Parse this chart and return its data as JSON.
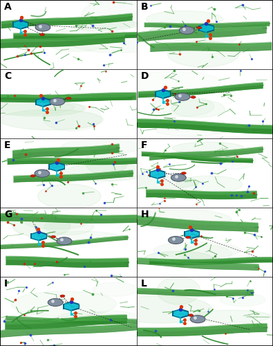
{
  "panels": [
    "A",
    "B",
    "C",
    "D",
    "E",
    "F",
    "G",
    "H",
    "I",
    "L"
  ],
  "grid_cols": 2,
  "grid_rows": 5,
  "panel_label_fontsize": 10,
  "panel_label_color": "#000000",
  "panel_label_weight": "bold",
  "background_color": "#ffffff",
  "border_color": "#000000",
  "border_linewidth": 0.5,
  "fig_width": 3.95,
  "fig_height": 5.0,
  "dpi": 100,
  "outer_border_color": "#000000",
  "outer_border_linewidth": 1.2
}
